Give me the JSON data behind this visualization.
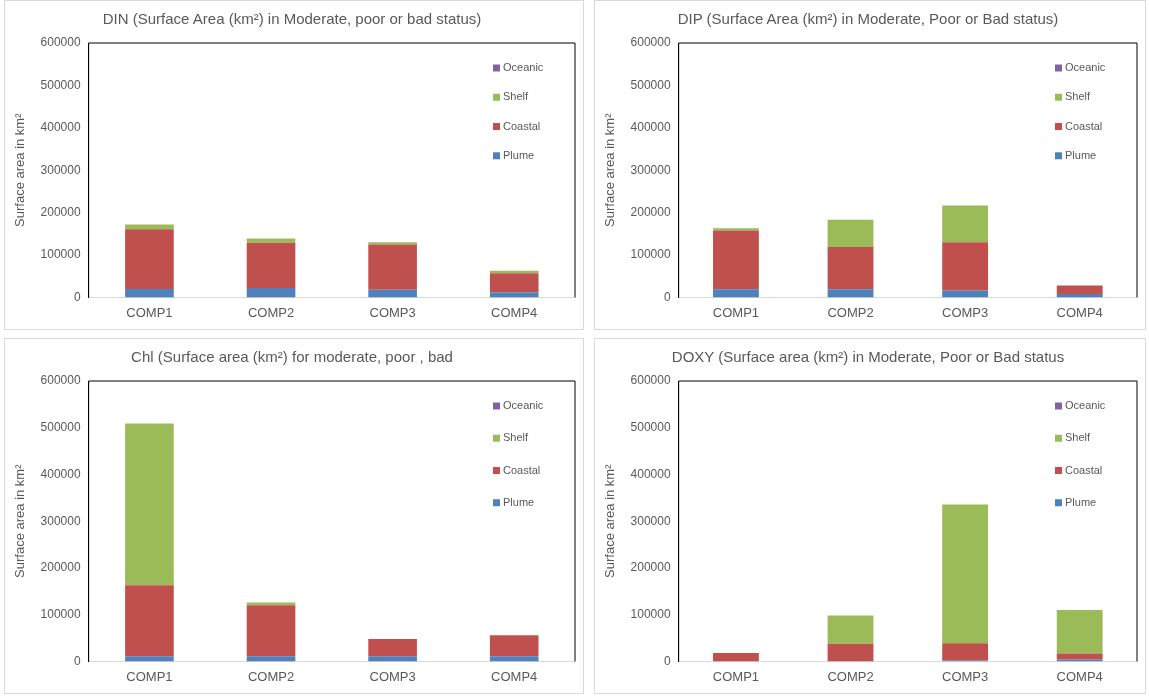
{
  "chart_data": [
    {
      "type": "bar",
      "stacked": true,
      "title": "DIN (Surface Area (km²) in Moderate, poor or bad status)",
      "ylabel": "Surface area in km²",
      "categories": [
        "COMP1",
        "COMP2",
        "COMP3",
        "COMP4"
      ],
      "ylim": [
        0,
        600000
      ],
      "yticks": [
        0,
        100000,
        200000,
        300000,
        400000,
        500000,
        600000
      ],
      "legend": "top right",
      "series": [
        {
          "name": "Plume",
          "color": "#4f81bd",
          "values": [
            20000,
            22000,
            18000,
            12000
          ]
        },
        {
          "name": "Coastal",
          "color": "#c0504d",
          "values": [
            141000,
            107000,
            107000,
            45000
          ]
        },
        {
          "name": "Shelf",
          "color": "#9bbb59",
          "values": [
            11000,
            10000,
            5000,
            6000
          ]
        },
        {
          "name": "Oceanic",
          "color": "#8064a2",
          "values": [
            0,
            0,
            0,
            0
          ]
        }
      ]
    },
    {
      "type": "bar",
      "stacked": true,
      "title": "DIP (Surface Area (km²) in Moderate, Poor or Bad status)",
      "ylabel": "Surface area in km²",
      "categories": [
        "COMP1",
        "COMP2",
        "COMP3",
        "COMP4"
      ],
      "ylim": [
        0,
        600000
      ],
      "yticks": [
        0,
        100000,
        200000,
        300000,
        400000,
        500000,
        600000
      ],
      "legend": "top right",
      "series": [
        {
          "name": "Plume",
          "color": "#4f81bd",
          "values": [
            19000,
            19000,
            16000,
            8000
          ]
        },
        {
          "name": "Coastal",
          "color": "#c0504d",
          "values": [
            139000,
            100000,
            114000,
            20000
          ]
        },
        {
          "name": "Shelf",
          "color": "#9bbb59",
          "values": [
            5000,
            64000,
            87000,
            0
          ]
        },
        {
          "name": "Oceanic",
          "color": "#8064a2",
          "values": [
            0,
            0,
            0,
            0
          ]
        }
      ]
    },
    {
      "type": "bar",
      "stacked": true,
      "title": "Chl (Surface area (km²) for moderate, poor , bad",
      "ylabel": "Surface area in km²",
      "categories": [
        "COMP1",
        "COMP2",
        "COMP3",
        "COMP4"
      ],
      "ylim": [
        0,
        600000
      ],
      "yticks": [
        0,
        100000,
        200000,
        300000,
        400000,
        500000,
        600000
      ],
      "legend": "top right",
      "series": [
        {
          "name": "Plume",
          "color": "#4f81bd",
          "values": [
            11000,
            11000,
            11000,
            11000
          ]
        },
        {
          "name": "Coastal",
          "color": "#c0504d",
          "values": [
            152000,
            109000,
            37000,
            45000
          ]
        },
        {
          "name": "Shelf",
          "color": "#9bbb59",
          "values": [
            346000,
            6000,
            0,
            0
          ]
        },
        {
          "name": "Oceanic",
          "color": "#8064a2",
          "values": [
            0,
            0,
            0,
            0
          ]
        }
      ]
    },
    {
      "type": "bar",
      "stacked": true,
      "title": "DOXY (Surface area (km²) in Moderate, Poor or Bad status",
      "ylabel": "Surface area in km²",
      "categories": [
        "COMP1",
        "COMP2",
        "COMP3",
        "COMP4"
      ],
      "ylim": [
        0,
        600000
      ],
      "yticks": [
        0,
        100000,
        200000,
        300000,
        400000,
        500000,
        600000
      ],
      "legend": "top right",
      "series": [
        {
          "name": "Plume",
          "color": "#4f81bd",
          "values": [
            0,
            0,
            2000,
            4000
          ]
        },
        {
          "name": "Coastal",
          "color": "#c0504d",
          "values": [
            18000,
            38000,
            37000,
            13000
          ]
        },
        {
          "name": "Shelf",
          "color": "#9bbb59",
          "values": [
            0,
            60000,
            297000,
            93000
          ]
        },
        {
          "name": "Oceanic",
          "color": "#8064a2",
          "values": [
            0,
            0,
            0,
            0
          ]
        }
      ]
    }
  ]
}
